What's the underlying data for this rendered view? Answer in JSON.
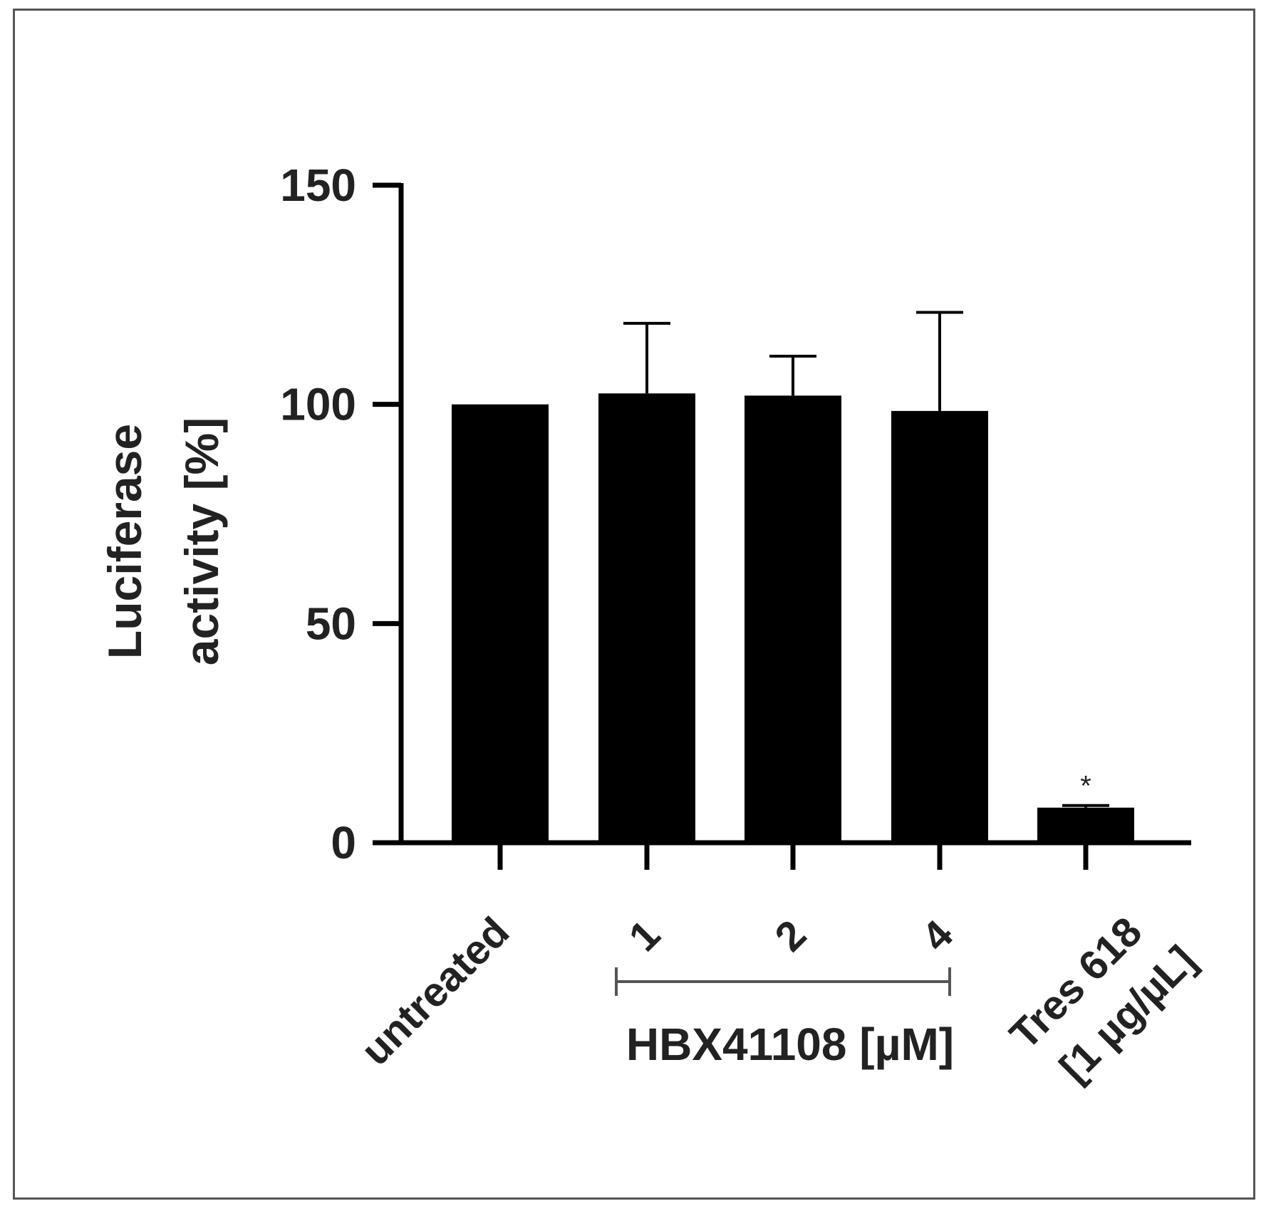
{
  "chart_data": {
    "type": "bar",
    "categories": [
      "untreated",
      "1",
      "2",
      "4",
      "Tres 618\n[1 µg/µL]"
    ],
    "values": [
      100,
      102.5,
      102,
      98.5,
      8
    ],
    "errors": [
      0,
      16,
      9,
      22.5,
      0.5
    ],
    "annotations": [
      {
        "category_index": 4,
        "text": "*"
      }
    ],
    "ylabel": [
      "Luciferase",
      "activity [%]"
    ],
    "ylim": [
      0,
      150
    ],
    "yticks": [
      0,
      50,
      100,
      150
    ],
    "group_bracket": {
      "from_index": 1,
      "to_index": 3,
      "label": "HBX41108 [µM]"
    },
    "bar_color": "#000000",
    "grid": false,
    "legend": "none"
  }
}
